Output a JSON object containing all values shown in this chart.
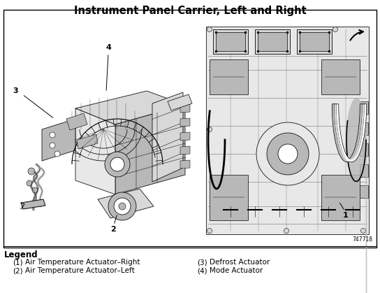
{
  "title": "Instrument Panel Carrier, Left and Right",
  "title_fontsize": 10.5,
  "title_fontweight": "bold",
  "background_color": "#ffffff",
  "border_color": "#000000",
  "legend_title": "Legend",
  "legend_items": [
    {
      "num": "(1)",
      "text": "Air Temperature Actuator–Right"
    },
    {
      "num": "(2)",
      "text": "Air Temperature Actuator–Left"
    },
    {
      "num": "(3)",
      "text": "Defrost Actuator"
    },
    {
      "num": "(4)",
      "text": "Mode Actuator"
    }
  ],
  "part_number": "747718",
  "fig_width": 5.44,
  "fig_height": 4.19,
  "dpi": 100,
  "border": [
    5,
    14,
    534,
    340
  ],
  "diagram_bg": "#f5f5f5"
}
